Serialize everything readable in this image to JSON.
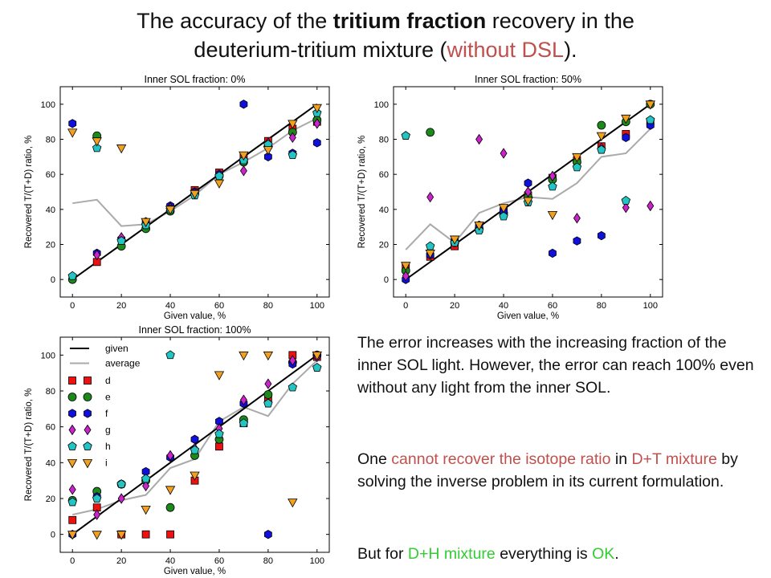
{
  "title": {
    "line1_pre": "The accuracy of the ",
    "line1_bold": "tritium fraction",
    "line1_post": " recovery in the",
    "line2_pre": "deuterium-tritium mixture (",
    "line2_red": "without DSL",
    "line2_post": ")."
  },
  "text": {
    "p1": "The error increases with the increasing fraction of the inner SOL light. However, the error can reach 100% even without any light from the inner SOL.",
    "p2_a": "One ",
    "p2_red1": "cannot recover the isotope ratio",
    "p2_b": " in ",
    "p2_red2": "D+T mixture",
    "p2_c": " by solving the inverse problem in its current formulation.",
    "p3_a": "But for ",
    "p3_green1": "D+H mixture",
    "p3_b": " everything is ",
    "p3_green2": "OK",
    "p3_c": "."
  },
  "colors": {
    "red_text": "#c0504d",
    "green_text": "#33cc33"
  },
  "chart_data": [
    {
      "type": "scatter",
      "title": "Inner SOL fraction: 0%",
      "xlabel": "Given value, %",
      "ylabel": "Recovered T/(T+D) ratio, %",
      "xlim": [
        -5,
        105
      ],
      "ylim": [
        -10,
        110
      ],
      "xticks": [
        0,
        20,
        40,
        60,
        80,
        100
      ],
      "yticks": [
        0,
        20,
        40,
        60,
        80,
        100
      ],
      "grid": false,
      "legend": false,
      "x": [
        0,
        10,
        20,
        30,
        40,
        50,
        60,
        70,
        80,
        90,
        100
      ],
      "lines": [
        {
          "name": "given",
          "color": "#000000",
          "values": [
            0,
            10,
            20,
            30,
            40,
            50,
            60,
            70,
            80,
            90,
            100
          ]
        },
        {
          "name": "average",
          "color": "#aaaaaa",
          "values": [
            43.5,
            45.5,
            30.5,
            31.5,
            39,
            48,
            60,
            67,
            75,
            85,
            92
          ]
        }
      ],
      "series": [
        {
          "name": "d",
          "marker": "square",
          "color": "#ee1111",
          "points": [
            [
              10,
              10
            ],
            [
              50,
              51
            ],
            [
              60,
              61
            ],
            [
              70,
              70
            ],
            [
              80,
              79
            ],
            [
              90,
              86
            ],
            [
              100,
              90
            ]
          ]
        },
        {
          "name": "e",
          "marker": "circle",
          "color": "#1b8a1b",
          "points": [
            [
              0,
              0
            ],
            [
              10,
              82
            ],
            [
              20,
              19
            ],
            [
              30,
              29
            ],
            [
              40,
              39
            ],
            [
              50,
              49
            ],
            [
              60,
              59
            ],
            [
              70,
              67
            ],
            [
              80,
              76
            ],
            [
              90,
              84
            ],
            [
              100,
              91
            ]
          ]
        },
        {
          "name": "f",
          "marker": "hexagon",
          "color": "#1010dd",
          "points": [
            [
              0,
              89
            ],
            [
              10,
              15
            ],
            [
              20,
              23
            ],
            [
              30,
              33
            ],
            [
              40,
              42
            ],
            [
              50,
              50
            ],
            [
              60,
              60
            ],
            [
              70,
              100
            ],
            [
              80,
              70
            ],
            [
              90,
              72
            ],
            [
              100,
              78
            ]
          ]
        },
        {
          "name": "g",
          "marker": "diamond",
          "color": "#cc22cc",
          "points": [
            [
              10,
              14
            ],
            [
              20,
              24
            ],
            [
              30,
              32
            ],
            [
              40,
              41
            ],
            [
              50,
              49
            ],
            [
              60,
              58
            ],
            [
              70,
              62
            ],
            [
              80,
              78
            ],
            [
              90,
              81
            ],
            [
              100,
              89
            ]
          ]
        },
        {
          "name": "h",
          "marker": "pentagon",
          "color": "#22c4c4",
          "points": [
            [
              0,
              2
            ],
            [
              10,
              75
            ],
            [
              20,
              22
            ],
            [
              30,
              31
            ],
            [
              40,
              40
            ],
            [
              50,
              48
            ],
            [
              60,
              59
            ],
            [
              70,
              68
            ],
            [
              80,
              77
            ],
            [
              90,
              71
            ],
            [
              100,
              95
            ]
          ]
        },
        {
          "name": "i",
          "marker": "triangle-down",
          "color": "#f2a020",
          "points": [
            [
              0,
              84
            ],
            [
              10,
              79
            ],
            [
              20,
              75
            ],
            [
              30,
              33
            ],
            [
              40,
              40
            ],
            [
              50,
              49
            ],
            [
              60,
              55
            ],
            [
              70,
              71
            ],
            [
              80,
              74
            ],
            [
              90,
              89
            ],
            [
              100,
              98
            ]
          ]
        }
      ]
    },
    {
      "type": "scatter",
      "title": "Inner SOL fraction: 50%",
      "xlabel": "Given value, %",
      "ylabel": "Recovered T/(T+D) ratio, %",
      "xlim": [
        -5,
        105
      ],
      "ylim": [
        -10,
        110
      ],
      "xticks": [
        0,
        20,
        40,
        60,
        80,
        100
      ],
      "yticks": [
        0,
        20,
        40,
        60,
        80,
        100
      ],
      "grid": false,
      "legend": false,
      "x": [
        0,
        10,
        20,
        30,
        40,
        50,
        60,
        70,
        80,
        90,
        100
      ],
      "lines": [
        {
          "name": "given",
          "color": "#000000",
          "values": [
            0,
            10,
            20,
            30,
            40,
            50,
            60,
            70,
            80,
            90,
            100
          ]
        },
        {
          "name": "average",
          "color": "#aaaaaa",
          "values": [
            17,
            31.5,
            21,
            38,
            43.5,
            47,
            46,
            55,
            70,
            72,
            86
          ]
        }
      ],
      "series": [
        {
          "name": "d",
          "marker": "square",
          "color": "#ee1111",
          "points": [
            [
              0,
              7
            ],
            [
              10,
              13
            ],
            [
              20,
              19
            ],
            [
              30,
              29
            ],
            [
              40,
              39
            ],
            [
              50,
              48
            ],
            [
              60,
              58
            ],
            [
              70,
              68
            ],
            [
              80,
              76
            ],
            [
              90,
              83
            ],
            [
              100,
              90
            ]
          ]
        },
        {
          "name": "e",
          "marker": "circle",
          "color": "#1b8a1b",
          "points": [
            [
              0,
              5
            ],
            [
              10,
              84
            ],
            [
              20,
              21
            ],
            [
              30,
              29
            ],
            [
              40,
              38
            ],
            [
              50,
              47
            ],
            [
              60,
              57
            ],
            [
              70,
              67
            ],
            [
              80,
              88
            ],
            [
              90,
              90
            ],
            [
              100,
              100
            ]
          ]
        },
        {
          "name": "f",
          "marker": "hexagon",
          "color": "#1010dd",
          "points": [
            [
              0,
              0
            ],
            [
              10,
              14
            ],
            [
              20,
              22
            ],
            [
              30,
              31
            ],
            [
              40,
              39
            ],
            [
              50,
              55
            ],
            [
              60,
              15
            ],
            [
              70,
              22
            ],
            [
              80,
              25
            ],
            [
              90,
              81
            ],
            [
              100,
              88
            ]
          ]
        },
        {
          "name": "g",
          "marker": "diamond",
          "color": "#cc22cc",
          "points": [
            [
              0,
              2
            ],
            [
              10,
              47
            ],
            [
              20,
              22
            ],
            [
              30,
              80
            ],
            [
              40,
              72
            ],
            [
              50,
              50
            ],
            [
              60,
              59
            ],
            [
              70,
              35
            ],
            [
              80,
              75
            ],
            [
              90,
              41
            ],
            [
              100,
              42
            ]
          ]
        },
        {
          "name": "h",
          "marker": "pentagon",
          "color": "#22c4c4",
          "points": [
            [
              0,
              82
            ],
            [
              10,
              19
            ],
            [
              20,
              21
            ],
            [
              30,
              28
            ],
            [
              40,
              36
            ],
            [
              50,
              44
            ],
            [
              60,
              53
            ],
            [
              70,
              64
            ],
            [
              80,
              74
            ],
            [
              90,
              45
            ],
            [
              100,
              91
            ]
          ]
        },
        {
          "name": "i",
          "marker": "triangle-down",
          "color": "#f2a020",
          "points": [
            [
              0,
              8
            ],
            [
              10,
              15
            ],
            [
              20,
              23
            ],
            [
              30,
              31
            ],
            [
              40,
              41
            ],
            [
              50,
              45
            ],
            [
              60,
              37
            ],
            [
              70,
              70
            ],
            [
              80,
              82
            ],
            [
              90,
              92
            ],
            [
              100,
              100
            ]
          ]
        }
      ]
    },
    {
      "type": "scatter",
      "title": "Inner SOL fraction: 100%",
      "xlabel": "Given value, %",
      "ylabel": "Recovered T/(T+D) ratio, %",
      "xlim": [
        -5,
        105
      ],
      "ylim": [
        -10,
        110
      ],
      "xticks": [
        0,
        20,
        40,
        60,
        80,
        100
      ],
      "yticks": [
        0,
        20,
        40,
        60,
        80,
        100
      ],
      "grid": false,
      "legend": true,
      "legend_position": "upper-left",
      "x": [
        0,
        10,
        20,
        30,
        40,
        50,
        60,
        70,
        80,
        90,
        100
      ],
      "lines": [
        {
          "name": "given",
          "color": "#000000",
          "values": [
            0,
            10,
            20,
            30,
            40,
            50,
            60,
            70,
            80,
            90,
            100
          ]
        },
        {
          "name": "average",
          "color": "#aaaaaa",
          "values": [
            11,
            14,
            19,
            22,
            37,
            42,
            63,
            71,
            66,
            84,
            97
          ]
        }
      ],
      "series": [
        {
          "name": "d",
          "marker": "square",
          "color": "#ee1111",
          "points": [
            [
              0,
              8
            ],
            [
              10,
              15
            ],
            [
              20,
              0
            ],
            [
              30,
              0
            ],
            [
              40,
              0
            ],
            [
              50,
              30
            ],
            [
              60,
              49
            ],
            [
              70,
              62
            ],
            [
              80,
              76
            ],
            [
              90,
              100
            ],
            [
              100,
              99
            ]
          ]
        },
        {
          "name": "e",
          "marker": "circle",
          "color": "#1b8a1b",
          "points": [
            [
              0,
              19
            ],
            [
              10,
              24
            ],
            [
              20,
              28
            ],
            [
              30,
              30
            ],
            [
              40,
              15
            ],
            [
              50,
              44
            ],
            [
              60,
              53
            ],
            [
              70,
              64
            ],
            [
              80,
              78
            ],
            [
              90,
              96
            ],
            [
              100,
              100
            ]
          ]
        },
        {
          "name": "f",
          "marker": "hexagon",
          "color": "#1010dd",
          "points": [
            [
              0,
              0
            ],
            [
              10,
              21
            ],
            [
              20,
              28
            ],
            [
              30,
              35
            ],
            [
              40,
              43
            ],
            [
              50,
              53
            ],
            [
              60,
              63
            ],
            [
              70,
              73
            ],
            [
              80,
              0
            ],
            [
              90,
              95
            ],
            [
              100,
              100
            ]
          ]
        },
        {
          "name": "g",
          "marker": "diamond",
          "color": "#cc22cc",
          "points": [
            [
              0,
              25
            ],
            [
              10,
              11
            ],
            [
              20,
              20
            ],
            [
              30,
              27
            ],
            [
              40,
              44
            ],
            [
              50,
              48
            ],
            [
              60,
              59
            ],
            [
              70,
              75
            ],
            [
              80,
              84
            ],
            [
              90,
              97
            ],
            [
              100,
              99
            ]
          ]
        },
        {
          "name": "h",
          "marker": "pentagon",
          "color": "#22c4c4",
          "points": [
            [
              0,
              18
            ],
            [
              10,
              20
            ],
            [
              20,
              28
            ],
            [
              30,
              31
            ],
            [
              40,
              100
            ],
            [
              50,
              47
            ],
            [
              60,
              56
            ],
            [
              70,
              62
            ],
            [
              80,
              73
            ],
            [
              90,
              82
            ],
            [
              100,
              93
            ]
          ]
        },
        {
          "name": "i",
          "marker": "triangle-down",
          "color": "#f2a020",
          "points": [
            [
              0,
              0
            ],
            [
              10,
              0
            ],
            [
              20,
              0
            ],
            [
              30,
              14
            ],
            [
              40,
              25
            ],
            [
              50,
              33
            ],
            [
              60,
              89
            ],
            [
              70,
              100
            ],
            [
              80,
              100
            ],
            [
              90,
              18
            ],
            [
              100,
              100
            ]
          ]
        }
      ]
    }
  ]
}
